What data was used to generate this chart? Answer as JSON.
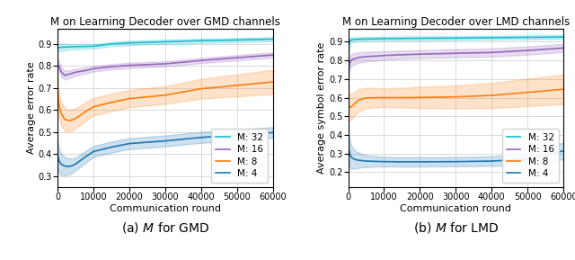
{
  "title_left": "M on Learning Decoder over GMD channels",
  "title_right": "M on Learning Decoder over LMD channels",
  "xlabel": "Communication round",
  "ylabel_left": "Average error rate",
  "ylabel_right": "Average symbol error rate",
  "caption_left": "(a) $M$ for GMD",
  "caption_right": "(b) $M$ for LMD",
  "xlim": [
    0,
    60000
  ],
  "ylim_left": [
    0.25,
    0.97
  ],
  "ylim_right": [
    0.12,
    0.97
  ],
  "yticks_left": [
    0.3,
    0.4,
    0.5,
    0.6,
    0.7,
    0.8,
    0.9
  ],
  "yticks_right": [
    0.2,
    0.3,
    0.4,
    0.5,
    0.6,
    0.7,
    0.8,
    0.9
  ],
  "colors": {
    "M32": "#17becf",
    "M16": "#9467bd",
    "M8": "#ff7f0e",
    "M4": "#1f77b4"
  },
  "legend_labels": [
    "M: 32",
    "M: 16",
    "M: 8",
    "M: 4"
  ],
  "gmd": {
    "M32": {
      "x": [
        0,
        200,
        500,
        1000,
        2000,
        3000,
        5000,
        8000,
        10000,
        15000,
        20000,
        30000,
        40000,
        50000,
        60000
      ],
      "mean": [
        0.876,
        0.882,
        0.885,
        0.885,
        0.886,
        0.887,
        0.888,
        0.889,
        0.89,
        0.9,
        0.905,
        0.91,
        0.915,
        0.918,
        0.922
      ],
      "std": [
        0.02,
        0.018,
        0.017,
        0.016,
        0.015,
        0.013,
        0.012,
        0.011,
        0.01,
        0.01,
        0.01,
        0.01,
        0.01,
        0.01,
        0.01
      ]
    },
    "M16": {
      "x": [
        0,
        200,
        500,
        1000,
        2000,
        3000,
        5000,
        8000,
        10000,
        15000,
        20000,
        30000,
        40000,
        50000,
        60000
      ],
      "mean": [
        0.81,
        0.805,
        0.795,
        0.775,
        0.758,
        0.762,
        0.772,
        0.78,
        0.788,
        0.797,
        0.803,
        0.81,
        0.825,
        0.838,
        0.85
      ],
      "std": [
        0.028,
        0.026,
        0.024,
        0.022,
        0.02,
        0.018,
        0.016,
        0.014,
        0.013,
        0.012,
        0.012,
        0.012,
        0.012,
        0.012,
        0.012
      ]
    },
    "M8": {
      "x": [
        0,
        200,
        500,
        1000,
        2000,
        3000,
        4000,
        5000,
        8000,
        10000,
        15000,
        20000,
        30000,
        40000,
        50000,
        60000
      ],
      "mean": [
        0.7,
        0.65,
        0.618,
        0.585,
        0.558,
        0.553,
        0.555,
        0.562,
        0.595,
        0.615,
        0.635,
        0.652,
        0.668,
        0.697,
        0.712,
        0.728
      ],
      "std": [
        0.065,
        0.06,
        0.058,
        0.055,
        0.052,
        0.05,
        0.048,
        0.046,
        0.042,
        0.04,
        0.04,
        0.04,
        0.04,
        0.045,
        0.05,
        0.055
      ]
    },
    "M4": {
      "x": [
        0,
        200,
        500,
        1000,
        2000,
        3000,
        4000,
        5000,
        8000,
        10000,
        15000,
        20000,
        30000,
        40000,
        50000,
        60000
      ],
      "mean": [
        0.4,
        0.385,
        0.368,
        0.355,
        0.346,
        0.344,
        0.347,
        0.355,
        0.39,
        0.412,
        0.432,
        0.448,
        0.46,
        0.476,
        0.487,
        0.498
      ],
      "std": [
        0.062,
        0.058,
        0.055,
        0.05,
        0.042,
        0.038,
        0.033,
        0.03,
        0.026,
        0.025,
        0.025,
        0.025,
        0.025,
        0.025,
        0.025,
        0.025
      ]
    }
  },
  "lmd": {
    "M32": {
      "x": [
        0,
        200,
        500,
        1000,
        2000,
        3000,
        5000,
        8000,
        10000,
        15000,
        20000,
        30000,
        40000,
        50000,
        60000
      ],
      "mean": [
        0.72,
        0.88,
        0.905,
        0.91,
        0.912,
        0.913,
        0.914,
        0.915,
        0.916,
        0.917,
        0.918,
        0.919,
        0.921,
        0.923,
        0.925
      ],
      "std": [
        0.035,
        0.022,
        0.016,
        0.014,
        0.013,
        0.012,
        0.012,
        0.011,
        0.011,
        0.011,
        0.011,
        0.011,
        0.011,
        0.011,
        0.011
      ]
    },
    "M16": {
      "x": [
        0,
        200,
        500,
        1000,
        2000,
        3000,
        5000,
        8000,
        10000,
        15000,
        20000,
        30000,
        40000,
        50000,
        60000
      ],
      "mean": [
        0.7,
        0.76,
        0.79,
        0.803,
        0.81,
        0.815,
        0.82,
        0.823,
        0.826,
        0.83,
        0.833,
        0.838,
        0.842,
        0.853,
        0.866
      ],
      "std": [
        0.045,
        0.04,
        0.035,
        0.032,
        0.03,
        0.028,
        0.026,
        0.024,
        0.023,
        0.022,
        0.022,
        0.022,
        0.022,
        0.022,
        0.022
      ]
    },
    "M8": {
      "x": [
        0,
        200,
        500,
        1000,
        2000,
        3000,
        4000,
        5000,
        8000,
        10000,
        15000,
        20000,
        30000,
        40000,
        50000,
        60000
      ],
      "mean": [
        0.56,
        0.555,
        0.548,
        0.553,
        0.572,
        0.586,
        0.594,
        0.598,
        0.6,
        0.6,
        0.6,
        0.601,
        0.604,
        0.612,
        0.628,
        0.645
      ],
      "std": [
        0.075,
        0.072,
        0.07,
        0.067,
        0.063,
        0.06,
        0.057,
        0.055,
        0.052,
        0.05,
        0.053,
        0.057,
        0.062,
        0.068,
        0.074,
        0.08
      ]
    },
    "M4": {
      "x": [
        0,
        200,
        500,
        1000,
        2000,
        3000,
        4000,
        5000,
        8000,
        10000,
        15000,
        20000,
        30000,
        40000,
        50000,
        60000
      ],
      "mean": [
        0.38,
        0.32,
        0.295,
        0.278,
        0.268,
        0.264,
        0.262,
        0.26,
        0.258,
        0.257,
        0.256,
        0.256,
        0.257,
        0.26,
        0.27,
        0.315
      ],
      "std": [
        0.085,
        0.078,
        0.07,
        0.06,
        0.048,
        0.04,
        0.035,
        0.032,
        0.028,
        0.026,
        0.025,
        0.025,
        0.025,
        0.026,
        0.03,
        0.045
      ]
    }
  },
  "background_color": "#ffffff",
  "grid_color": "#cccccc",
  "tick_fontsize": 7,
  "label_fontsize": 8,
  "title_fontsize": 8.5,
  "legend_fontsize": 7.5,
  "caption_fontsize": 10
}
